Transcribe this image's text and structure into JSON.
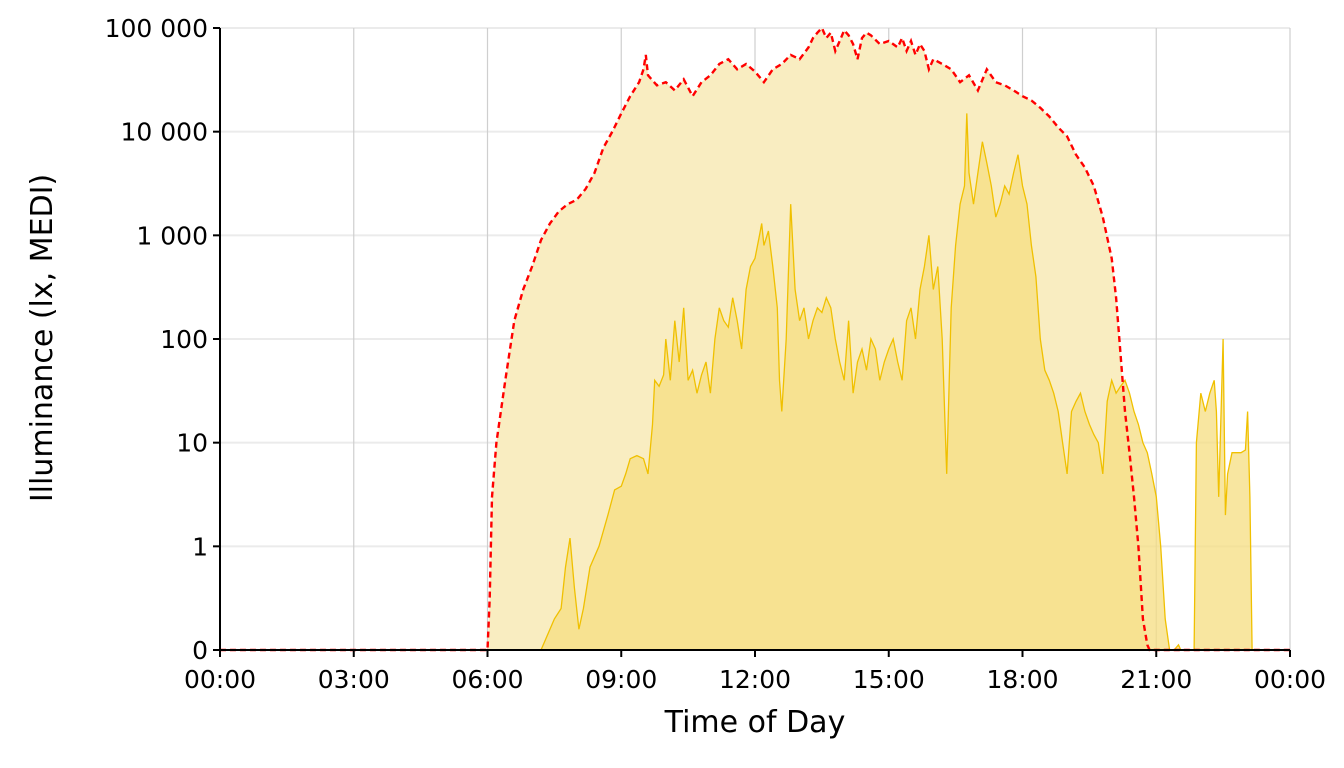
{
  "chart_data": {
    "type": "area",
    "title": "",
    "xlabel": "Time of Day",
    "ylabel": "Illuminance (lx, MEDI)",
    "y_scale": "symlog",
    "xlim_hours": [
      0,
      24
    ],
    "ylim": [
      0,
      100000
    ],
    "x_ticks": [
      {
        "hour": 0,
        "label": "00:00"
      },
      {
        "hour": 3,
        "label": "03:00"
      },
      {
        "hour": 6,
        "label": "06:00"
      },
      {
        "hour": 9,
        "label": "09:00"
      },
      {
        "hour": 12,
        "label": "12:00"
      },
      {
        "hour": 15,
        "label": "15:00"
      },
      {
        "hour": 18,
        "label": "18:00"
      },
      {
        "hour": 21,
        "label": "21:00"
      },
      {
        "hour": 24,
        "label": "00:00"
      }
    ],
    "y_ticks": [
      {
        "value": 0,
        "label": "0"
      },
      {
        "value": 1,
        "label": "1"
      },
      {
        "value": 10,
        "label": "10"
      },
      {
        "value": 100,
        "label": "100"
      },
      {
        "value": 1000,
        "label": "1 000"
      },
      {
        "value": 10000,
        "label": "10 000"
      },
      {
        "value": 100000,
        "label": "100 000"
      }
    ],
    "grid": true,
    "series": [
      {
        "role": "measured",
        "color": "#f0c000",
        "fill": "#f5dd80",
        "points": [
          [
            0,
            0
          ],
          [
            7.2,
            0
          ],
          [
            7.3,
            0.1
          ],
          [
            7.5,
            0.3
          ],
          [
            7.65,
            0.4
          ],
          [
            7.75,
            0.8
          ],
          [
            7.85,
            1.2
          ],
          [
            7.95,
            0.6
          ],
          [
            8.05,
            0.2
          ],
          [
            8.15,
            0.4
          ],
          [
            8.3,
            0.8
          ],
          [
            8.5,
            1
          ],
          [
            8.7,
            2
          ],
          [
            8.85,
            3.5
          ],
          [
            9.0,
            3.8
          ],
          [
            9.1,
            5
          ],
          [
            9.2,
            7
          ],
          [
            9.35,
            7.5
          ],
          [
            9.5,
            7
          ],
          [
            9.6,
            5
          ],
          [
            9.7,
            15
          ],
          [
            9.75,
            40
          ],
          [
            9.85,
            35
          ],
          [
            9.95,
            45
          ],
          [
            10.0,
            100
          ],
          [
            10.1,
            40
          ],
          [
            10.2,
            150
          ],
          [
            10.3,
            60
          ],
          [
            10.4,
            200
          ],
          [
            10.5,
            40
          ],
          [
            10.6,
            50
          ],
          [
            10.7,
            30
          ],
          [
            10.8,
            45
          ],
          [
            10.9,
            60
          ],
          [
            11.0,
            30
          ],
          [
            11.1,
            100
          ],
          [
            11.2,
            200
          ],
          [
            11.3,
            150
          ],
          [
            11.4,
            130
          ],
          [
            11.5,
            250
          ],
          [
            11.6,
            150
          ],
          [
            11.7,
            80
          ],
          [
            11.8,
            300
          ],
          [
            11.9,
            500
          ],
          [
            12.0,
            600
          ],
          [
            12.1,
            1000
          ],
          [
            12.15,
            1300
          ],
          [
            12.2,
            800
          ],
          [
            12.3,
            1100
          ],
          [
            12.4,
            500
          ],
          [
            12.5,
            200
          ],
          [
            12.55,
            40
          ],
          [
            12.6,
            20
          ],
          [
            12.7,
            100
          ],
          [
            12.8,
            2000
          ],
          [
            12.9,
            300
          ],
          [
            13.0,
            150
          ],
          [
            13.1,
            200
          ],
          [
            13.2,
            100
          ],
          [
            13.3,
            150
          ],
          [
            13.4,
            200
          ],
          [
            13.5,
            180
          ],
          [
            13.6,
            250
          ],
          [
            13.7,
            200
          ],
          [
            13.8,
            100
          ],
          [
            13.9,
            60
          ],
          [
            14.0,
            40
          ],
          [
            14.1,
            150
          ],
          [
            14.2,
            30
          ],
          [
            14.3,
            60
          ],
          [
            14.4,
            80
          ],
          [
            14.5,
            50
          ],
          [
            14.6,
            100
          ],
          [
            14.7,
            80
          ],
          [
            14.8,
            40
          ],
          [
            14.9,
            60
          ],
          [
            15.0,
            80
          ],
          [
            15.1,
            100
          ],
          [
            15.2,
            60
          ],
          [
            15.3,
            40
          ],
          [
            15.4,
            150
          ],
          [
            15.5,
            200
          ],
          [
            15.6,
            100
          ],
          [
            15.7,
            300
          ],
          [
            15.8,
            500
          ],
          [
            15.9,
            1000
          ],
          [
            16.0,
            300
          ],
          [
            16.1,
            500
          ],
          [
            16.2,
            100
          ],
          [
            16.3,
            5
          ],
          [
            16.4,
            200
          ],
          [
            16.5,
            800
          ],
          [
            16.6,
            2000
          ],
          [
            16.7,
            3000
          ],
          [
            16.75,
            15000
          ],
          [
            16.8,
            4000
          ],
          [
            16.9,
            2000
          ],
          [
            17.0,
            4000
          ],
          [
            17.1,
            8000
          ],
          [
            17.2,
            5000
          ],
          [
            17.3,
            3000
          ],
          [
            17.4,
            1500
          ],
          [
            17.5,
            2000
          ],
          [
            17.6,
            3000
          ],
          [
            17.7,
            2500
          ],
          [
            17.8,
            4000
          ],
          [
            17.9,
            6000
          ],
          [
            18.0,
            3000
          ],
          [
            18.1,
            2000
          ],
          [
            18.2,
            800
          ],
          [
            18.3,
            400
          ],
          [
            18.4,
            100
          ],
          [
            18.5,
            50
          ],
          [
            18.6,
            40
          ],
          [
            18.7,
            30
          ],
          [
            18.8,
            20
          ],
          [
            18.9,
            10
          ],
          [
            19.0,
            5
          ],
          [
            19.1,
            20
          ],
          [
            19.2,
            25
          ],
          [
            19.3,
            30
          ],
          [
            19.4,
            20
          ],
          [
            19.5,
            15
          ],
          [
            19.6,
            12
          ],
          [
            19.7,
            10
          ],
          [
            19.8,
            5
          ],
          [
            19.9,
            25
          ],
          [
            20.0,
            40
          ],
          [
            20.1,
            30
          ],
          [
            20.2,
            35
          ],
          [
            20.3,
            40
          ],
          [
            20.4,
            30
          ],
          [
            20.5,
            20
          ],
          [
            20.6,
            15
          ],
          [
            20.7,
            10
          ],
          [
            20.8,
            8
          ],
          [
            20.9,
            5
          ],
          [
            21.0,
            3
          ],
          [
            21.1,
            1
          ],
          [
            21.2,
            0.3
          ],
          [
            21.3,
            0
          ],
          [
            21.4,
            0
          ],
          [
            21.5,
            0.05
          ],
          [
            21.55,
            0
          ],
          [
            21.6,
            0
          ],
          [
            21.7,
            0
          ],
          [
            21.8,
            0
          ],
          [
            21.85,
            0
          ],
          [
            21.9,
            10
          ],
          [
            22.0,
            30
          ],
          [
            22.1,
            20
          ],
          [
            22.2,
            30
          ],
          [
            22.3,
            40
          ],
          [
            22.35,
            20
          ],
          [
            22.4,
            3
          ],
          [
            22.5,
            100
          ],
          [
            22.55,
            2
          ],
          [
            22.6,
            5
          ],
          [
            22.7,
            8
          ],
          [
            22.8,
            8
          ],
          [
            22.9,
            8
          ],
          [
            23.0,
            8.5
          ],
          [
            23.05,
            20
          ],
          [
            23.1,
            3
          ],
          [
            23.15,
            0
          ],
          [
            24.0,
            0
          ]
        ]
      },
      {
        "role": "reference-limit",
        "color": "#ff0000",
        "fill": "#f9edc1",
        "dash": "dashed",
        "points": [
          [
            0,
            0
          ],
          [
            6.0,
            0
          ],
          [
            6.05,
            0.5
          ],
          [
            6.1,
            3
          ],
          [
            6.2,
            10
          ],
          [
            6.4,
            40
          ],
          [
            6.6,
            150
          ],
          [
            6.8,
            300
          ],
          [
            7.0,
            500
          ],
          [
            7.2,
            900
          ],
          [
            7.4,
            1300
          ],
          [
            7.6,
            1700
          ],
          [
            7.8,
            2000
          ],
          [
            8.0,
            2200
          ],
          [
            8.2,
            2800
          ],
          [
            8.4,
            4000
          ],
          [
            8.6,
            7000
          ],
          [
            8.8,
            10000
          ],
          [
            9.0,
            15000
          ],
          [
            9.2,
            22000
          ],
          [
            9.4,
            30000
          ],
          [
            9.5,
            40000
          ],
          [
            9.55,
            55000
          ],
          [
            9.6,
            35000
          ],
          [
            9.8,
            28000
          ],
          [
            10.0,
            30000
          ],
          [
            10.2,
            25000
          ],
          [
            10.4,
            32000
          ],
          [
            10.6,
            22000
          ],
          [
            10.8,
            30000
          ],
          [
            11.0,
            35000
          ],
          [
            11.2,
            45000
          ],
          [
            11.4,
            50000
          ],
          [
            11.6,
            40000
          ],
          [
            11.8,
            45000
          ],
          [
            12.0,
            38000
          ],
          [
            12.2,
            30000
          ],
          [
            12.4,
            40000
          ],
          [
            12.6,
            45000
          ],
          [
            12.8,
            55000
          ],
          [
            13.0,
            50000
          ],
          [
            13.2,
            65000
          ],
          [
            13.3,
            80000
          ],
          [
            13.4,
            90000
          ],
          [
            13.5,
            100000
          ],
          [
            13.6,
            80000
          ],
          [
            13.7,
            90000
          ],
          [
            13.8,
            60000
          ],
          [
            13.9,
            75000
          ],
          [
            14.0,
            95000
          ],
          [
            14.1,
            85000
          ],
          [
            14.2,
            70000
          ],
          [
            14.3,
            50000
          ],
          [
            14.4,
            80000
          ],
          [
            14.5,
            90000
          ],
          [
            14.6,
            85000
          ],
          [
            14.8,
            70000
          ],
          [
            15.0,
            75000
          ],
          [
            15.2,
            65000
          ],
          [
            15.3,
            80000
          ],
          [
            15.4,
            60000
          ],
          [
            15.5,
            75000
          ],
          [
            15.6,
            55000
          ],
          [
            15.7,
            70000
          ],
          [
            15.8,
            60000
          ],
          [
            15.9,
            40000
          ],
          [
            16.0,
            50000
          ],
          [
            16.2,
            45000
          ],
          [
            16.4,
            40000
          ],
          [
            16.6,
            30000
          ],
          [
            16.8,
            35000
          ],
          [
            17.0,
            25000
          ],
          [
            17.2,
            40000
          ],
          [
            17.4,
            30000
          ],
          [
            17.6,
            28000
          ],
          [
            17.8,
            25000
          ],
          [
            18.0,
            22000
          ],
          [
            18.2,
            20000
          ],
          [
            18.4,
            17000
          ],
          [
            18.6,
            14000
          ],
          [
            18.8,
            11000
          ],
          [
            19.0,
            9000
          ],
          [
            19.2,
            6000
          ],
          [
            19.4,
            4500
          ],
          [
            19.6,
            3000
          ],
          [
            19.8,
            1500
          ],
          [
            20.0,
            600
          ],
          [
            20.1,
            250
          ],
          [
            20.2,
            70
          ],
          [
            20.3,
            20
          ],
          [
            20.4,
            8
          ],
          [
            20.5,
            3
          ],
          [
            20.6,
            1
          ],
          [
            20.7,
            0.3
          ],
          [
            20.8,
            0.05
          ],
          [
            20.85,
            0
          ],
          [
            24.0,
            0
          ]
        ]
      }
    ]
  }
}
